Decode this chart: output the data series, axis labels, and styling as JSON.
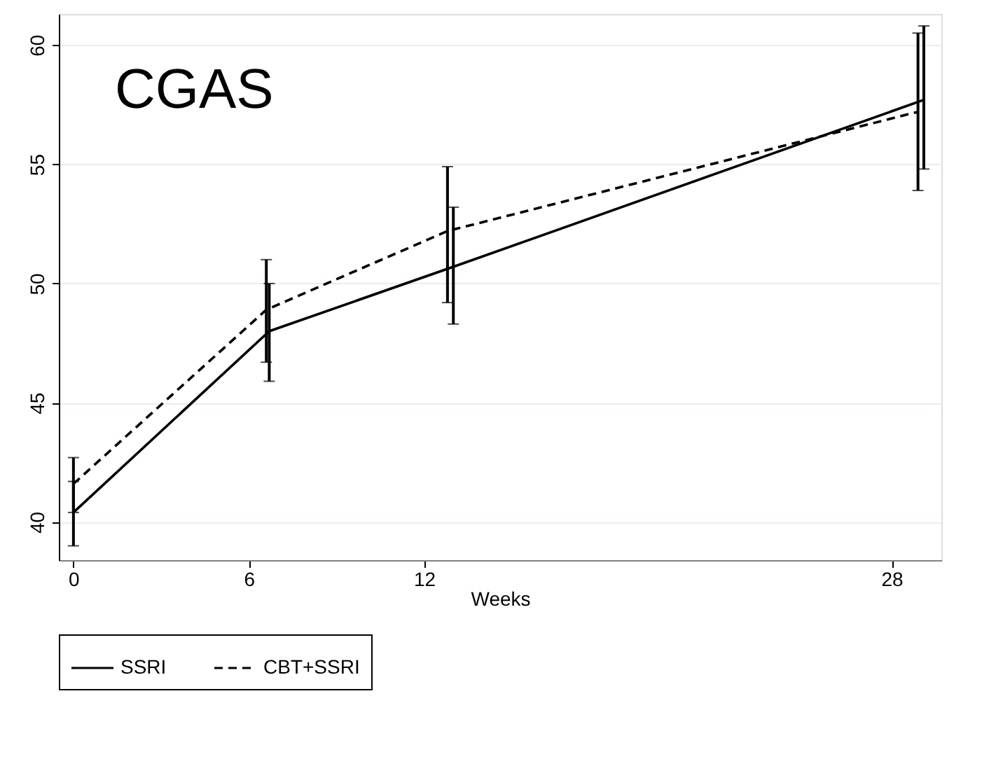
{
  "chart_data": {
    "type": "line",
    "xlabel": "Weeks",
    "annotations": [
      "CGAS"
    ],
    "xlim": [
      -0.5,
      29.7
    ],
    "xticks": [
      0,
      6,
      12,
      28
    ],
    "ylim": [
      38.4,
      61.3
    ],
    "yticks": [
      40,
      45,
      50,
      55,
      60
    ],
    "grid": "y",
    "legend": "bottom",
    "marker": "none",
    "series": [
      {
        "name": "SSRI",
        "color": "#000000",
        "line_style": "solid",
        "x": [
          0,
          6.7,
          13.0,
          29.1
        ],
        "values": [
          40.4,
          48.0,
          50.7,
          57.7
        ],
        "errors": [
          [
            39.0,
            41.7
          ],
          [
            45.9,
            50.0
          ],
          [
            48.3,
            53.2
          ],
          [
            54.8,
            60.8
          ]
        ]
      },
      {
        "name": "CBT+SSRI",
        "color": "#000000",
        "line_style": "dashed",
        "x": [
          0,
          6.6,
          12.8,
          28.9
        ],
        "values": [
          41.6,
          48.9,
          52.2,
          57.2
        ],
        "errors": [
          [
            40.4,
            42.7
          ],
          [
            46.7,
            51.0
          ],
          [
            49.2,
            54.9
          ],
          [
            53.9,
            60.5
          ]
        ]
      }
    ]
  }
}
